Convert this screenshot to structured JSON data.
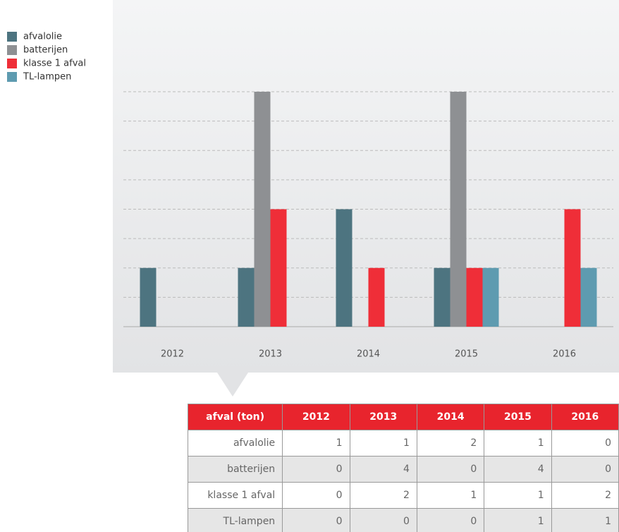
{
  "chart_data": {
    "type": "bar",
    "categories": [
      "2012",
      "2013",
      "2014",
      "2015",
      "2016"
    ],
    "series": [
      {
        "name": "afvalolie",
        "color": "#4d7480",
        "values": [
          1,
          1,
          2,
          1,
          0
        ]
      },
      {
        "name": "batterijen",
        "color": "#8e9093",
        "values": [
          0,
          4,
          0,
          4,
          0
        ]
      },
      {
        "name": "klasse 1 afval",
        "color": "#ef2e38",
        "values": [
          0,
          2,
          1,
          1,
          2
        ]
      },
      {
        "name": "TL-lampen",
        "color": "#5e9bb0",
        "values": [
          0,
          0,
          0,
          1,
          1
        ]
      }
    ],
    "ylim": [
      0,
      4
    ],
    "yticks": [
      0,
      0.5,
      1,
      1.5,
      2,
      2.5,
      3,
      3.5,
      4
    ],
    "grid": true,
    "legend": "top-left"
  },
  "table": {
    "header": "afval (ton)"
  }
}
